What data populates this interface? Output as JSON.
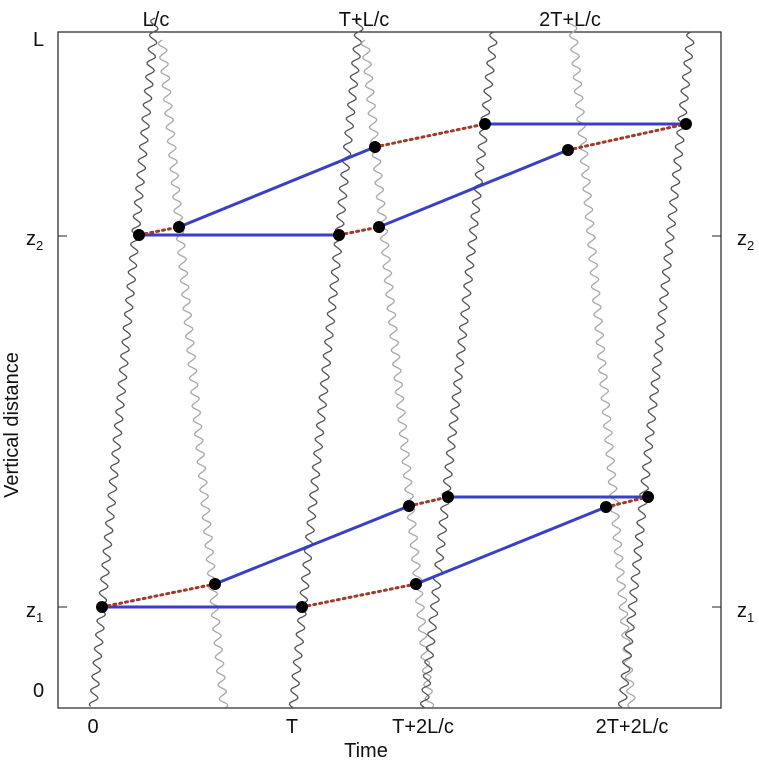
{
  "labels": {
    "top_ticks": [
      "L/c",
      "T+L/c",
      "2T+L/c"
    ],
    "bottom_ticks": [
      "0",
      "T",
      "T+2L/c",
      "2T+2L/c"
    ],
    "y_top": "L",
    "y_bottom": "0",
    "z2": {
      "base": "z",
      "sub": "2"
    },
    "z1": {
      "base": "z",
      "sub": "1"
    },
    "xlabel": "Time",
    "ylabel": "Vertical distance"
  },
  "colors": {
    "path": "#3b3fc4",
    "dotted": "#a03a2a",
    "wave_dark": "#555555",
    "wave_light": "#a8a8a8",
    "dot": "#000000"
  }
}
